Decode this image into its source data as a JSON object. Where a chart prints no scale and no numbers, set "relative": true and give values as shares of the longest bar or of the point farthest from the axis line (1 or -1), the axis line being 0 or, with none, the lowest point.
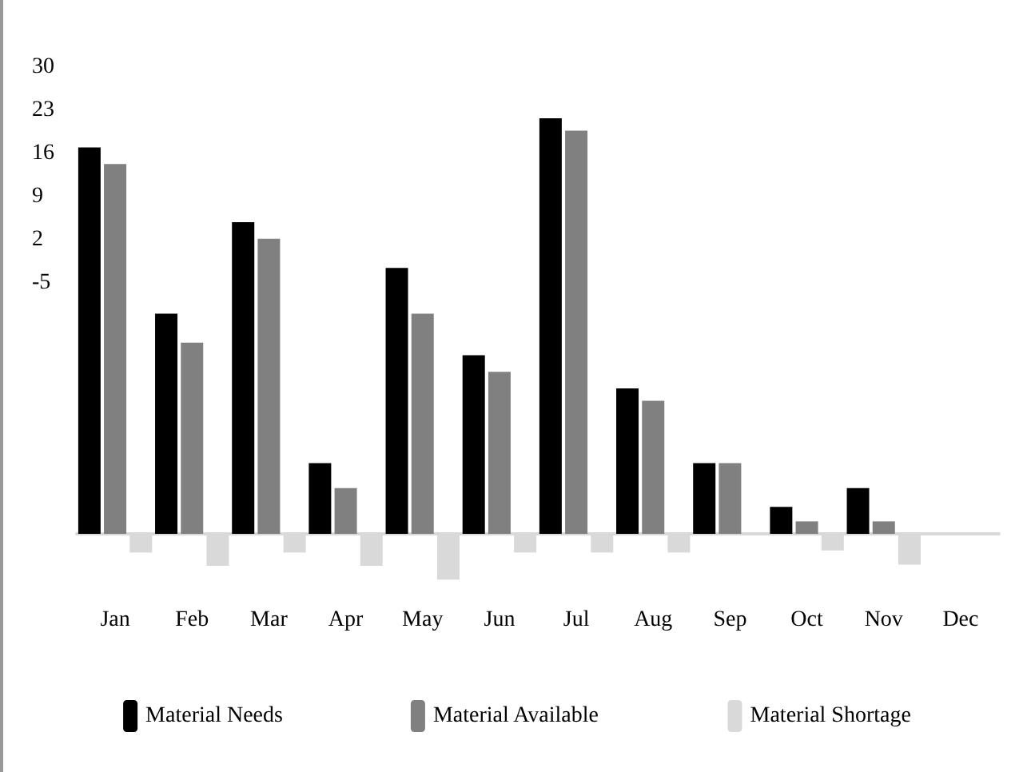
{
  "chart_data": {
    "type": "bar",
    "relative": true,
    "categories": [
      "Jan",
      "Feb",
      "Mar",
      "Apr",
      "May",
      "Jun",
      "Jul",
      "Aug",
      "Sep",
      "Oct",
      "Nov",
      "Dec"
    ],
    "series": [
      {
        "name": "Material Needs",
        "color": "#000000",
        "values": [
          0.93,
          0.53,
          0.75,
          0.17,
          0.64,
          0.43,
          1,
          0.35,
          0.17,
          0.065,
          0.11,
          0
        ]
      },
      {
        "name": "Material Available",
        "color": "#808080",
        "values": [
          0.89,
          0.46,
          0.71,
          0.11,
          0.53,
          0.39,
          0.97,
          0.32,
          0.17,
          0.03,
          0.03,
          0
        ]
      },
      {
        "name": "Material Shortage",
        "color": "#d9d9d9",
        "values": [
          -0.045,
          -0.077,
          -0.045,
          -0.077,
          -0.11,
          -0.045,
          -0.045,
          -0.045,
          0,
          -0.04,
          -0.074,
          0
        ]
      }
    ],
    "annotations": [
      "30",
      "23",
      "16",
      "9",
      "2",
      "-5"
    ],
    "legend": "bottom"
  }
}
